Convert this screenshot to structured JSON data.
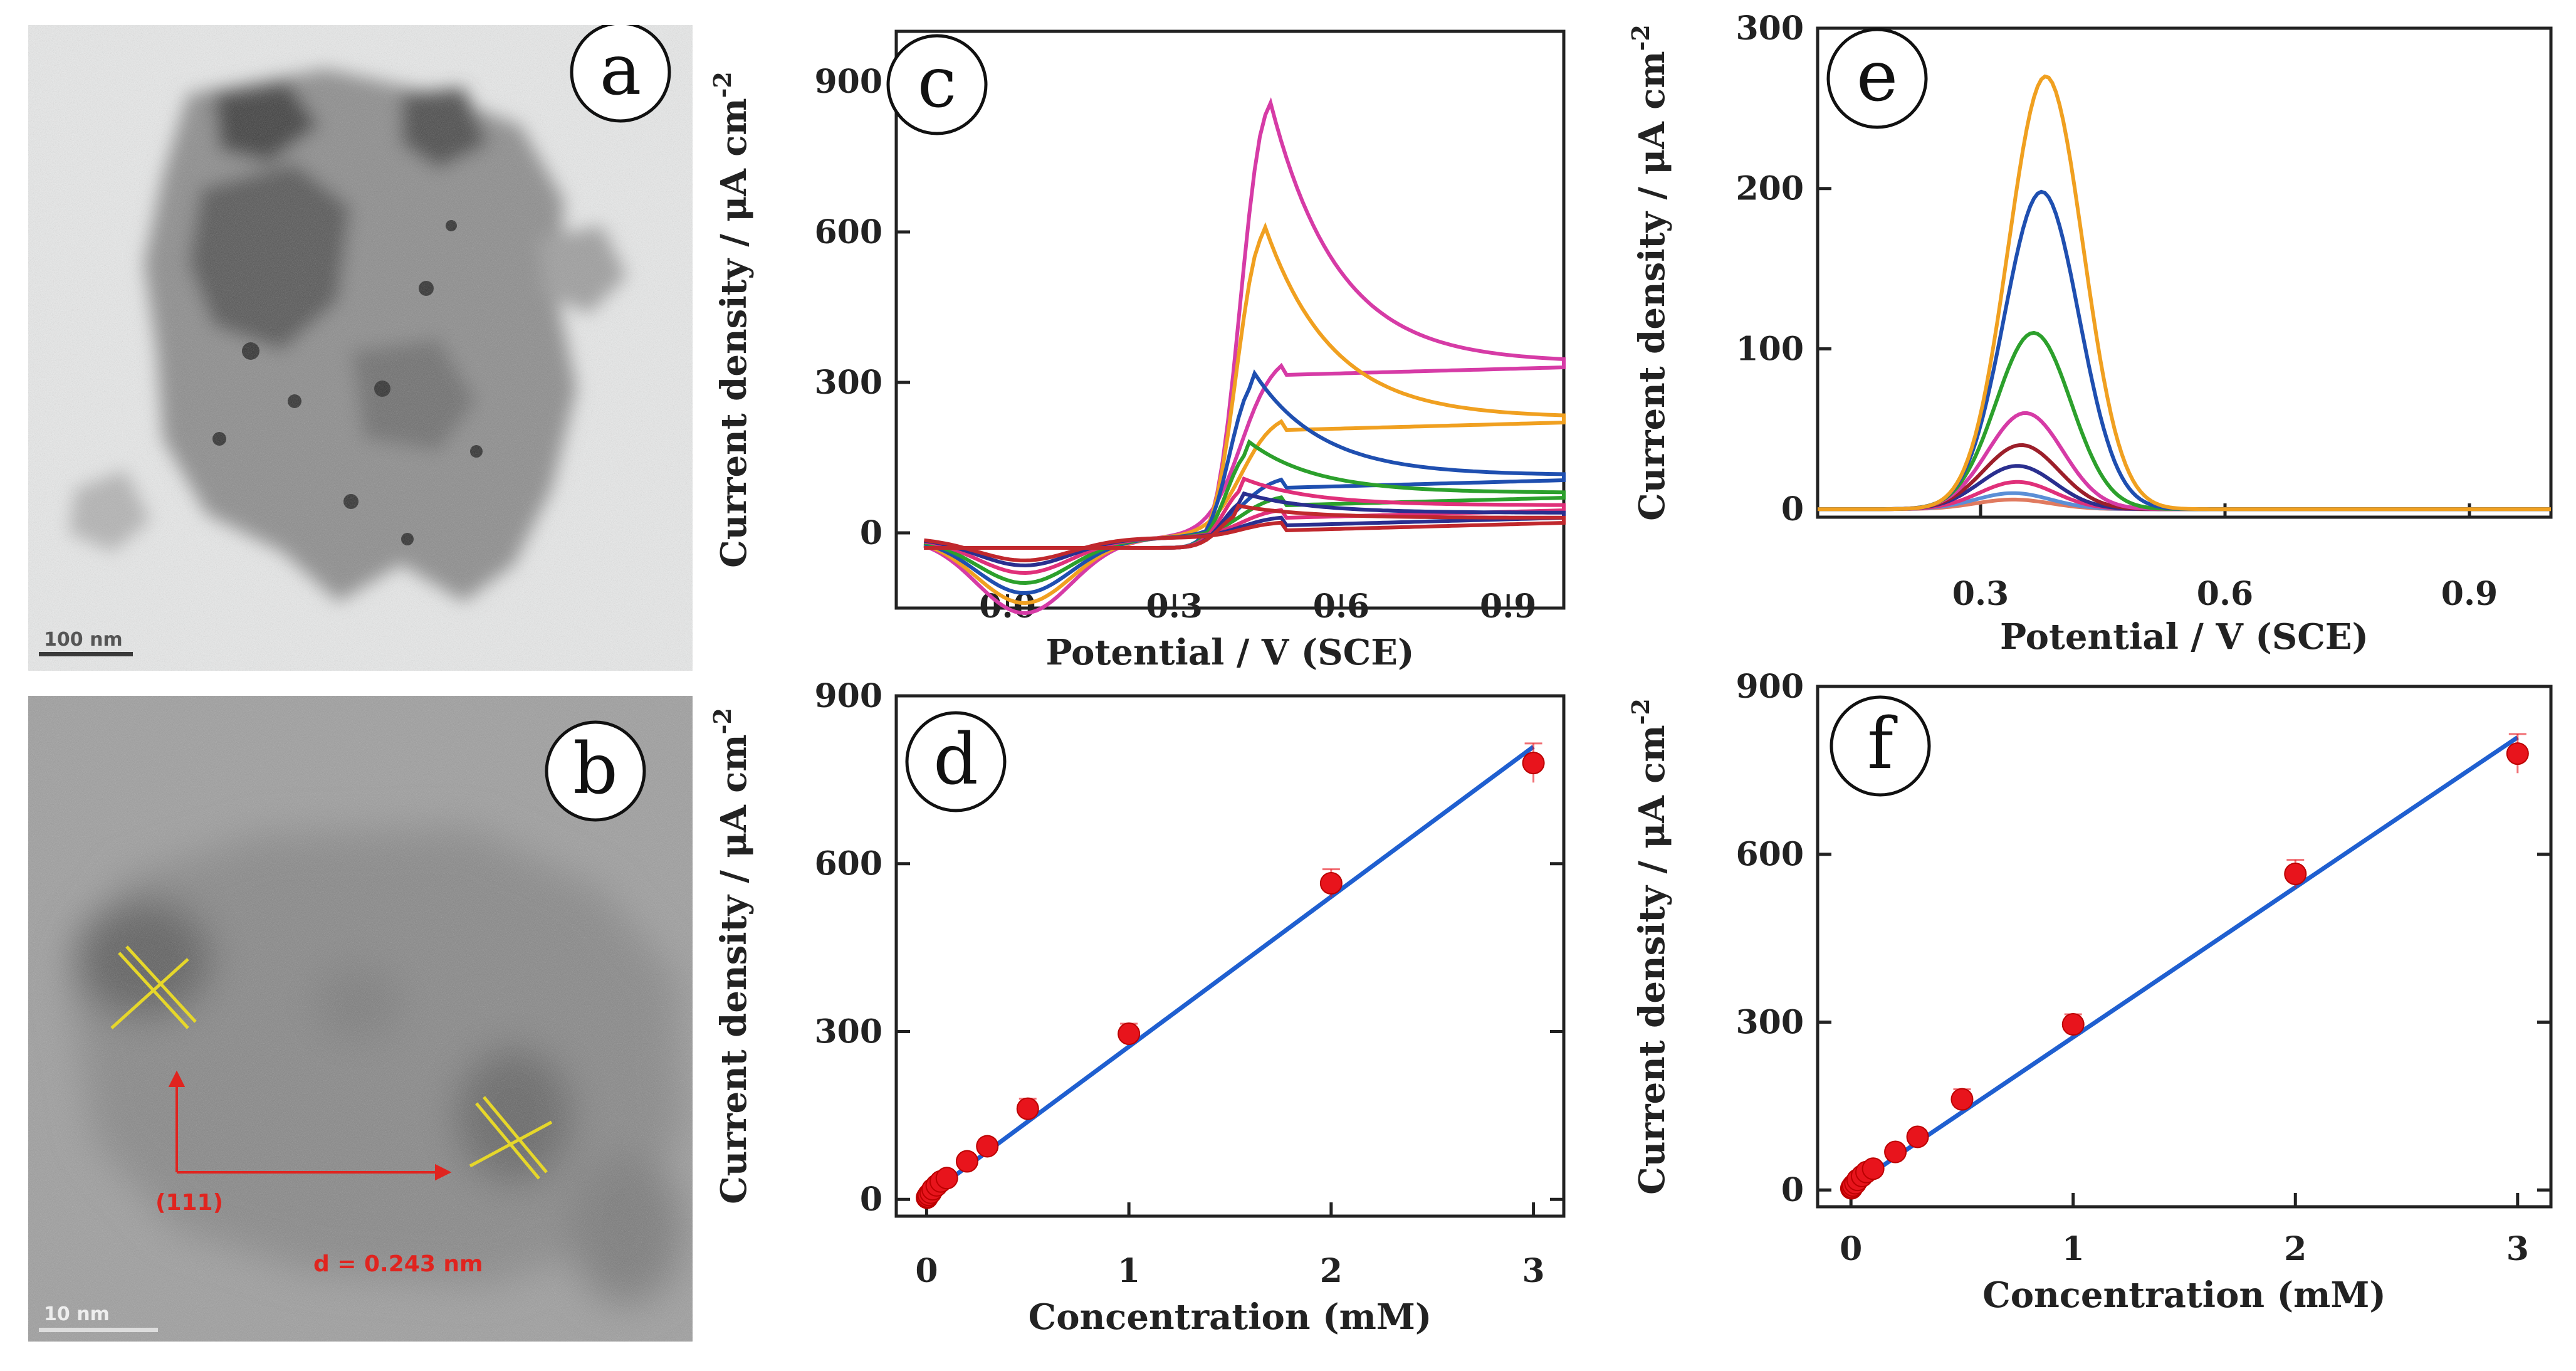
{
  "panels": {
    "a": {
      "letter": "a",
      "scale_bar": "100 nm"
    },
    "b": {
      "letter": "b",
      "scale_bar": "10 nm",
      "plane": "(111)",
      "d_spacing": "d = 0.243 nm"
    }
  },
  "chart_data": [
    {
      "id": "c",
      "letter": "c",
      "type": "line",
      "title": "",
      "xlabel": "Potential / V (SCE)",
      "ylabel": "Current density / μA cm",
      "ylabel_sup": "-2",
      "xlim": [
        -0.2,
        1.0
      ],
      "ylim": [
        -150,
        1000
      ],
      "xticks": [
        "0.0",
        "0.3",
        "0.6",
        "0.9"
      ],
      "xtick_values": [
        0.0,
        0.3,
        0.6,
        0.9
      ],
      "yticks": [
        "0",
        "300",
        "600",
        "900"
      ],
      "ytick_values": [
        0,
        300,
        600,
        900
      ],
      "series": [
        {
          "name": "magenta",
          "color": "#d63ba6",
          "peak_x": 0.47,
          "peak_y": 870,
          "end_y": 340,
          "min_y": -150
        },
        {
          "name": "orange",
          "color": "#f0a020",
          "peak_x": 0.46,
          "peak_y": 620,
          "end_y": 230,
          "min_y": -130
        },
        {
          "name": "blue",
          "color": "#1f4fb0",
          "peak_x": 0.44,
          "peak_y": 325,
          "end_y": 115,
          "min_y": -110
        },
        {
          "name": "green",
          "color": "#2ca02c",
          "peak_x": 0.43,
          "peak_y": 185,
          "end_y": 80,
          "min_y": -90
        },
        {
          "name": "pink",
          "color": "#e0307a",
          "peak_x": 0.42,
          "peak_y": 110,
          "end_y": 55,
          "min_y": -70
        },
        {
          "name": "navy",
          "color": "#2a2f8f",
          "peak_x": 0.42,
          "peak_y": 80,
          "end_y": 40,
          "min_y": -55
        },
        {
          "name": "red",
          "color": "#c0282d",
          "peak_x": 0.41,
          "peak_y": 55,
          "end_y": 30,
          "min_y": -45
        }
      ]
    },
    {
      "id": "e",
      "letter": "e",
      "type": "line",
      "title": "",
      "xlabel": "Potential / V (SCE)",
      "ylabel": "Current density / μA cm",
      "ylabel_sup": "-2",
      "xlim": [
        0.1,
        1.0
      ],
      "ylim": [
        -5,
        300
      ],
      "xticks": [
        "0.3",
        "0.6",
        "0.9"
      ],
      "xtick_values": [
        0.3,
        0.6,
        0.9
      ],
      "yticks": [
        "0",
        "100",
        "200",
        "300"
      ],
      "ytick_values": [
        0,
        100,
        200,
        300
      ],
      "series": [
        {
          "name": "orange",
          "color": "#f0a020",
          "peak_x": 0.38,
          "peak_y": 270
        },
        {
          "name": "blue",
          "color": "#1f4fb0",
          "peak_x": 0.375,
          "peak_y": 198
        },
        {
          "name": "green",
          "color": "#2ca02c",
          "peak_x": 0.365,
          "peak_y": 110
        },
        {
          "name": "magenta",
          "color": "#d63ba6",
          "peak_x": 0.355,
          "peak_y": 60
        },
        {
          "name": "darkred",
          "color": "#9c1f2a",
          "peak_x": 0.35,
          "peak_y": 40
        },
        {
          "name": "navy",
          "color": "#2a2f8f",
          "peak_x": 0.345,
          "peak_y": 27
        },
        {
          "name": "pink",
          "color": "#e0307a",
          "peak_x": 0.345,
          "peak_y": 17
        },
        {
          "name": "lightblue",
          "color": "#5b8fd6",
          "peak_x": 0.34,
          "peak_y": 10
        },
        {
          "name": "salmon",
          "color": "#e07a5f",
          "peak_x": 0.34,
          "peak_y": 6
        }
      ]
    },
    {
      "id": "d",
      "letter": "d",
      "type": "scatter",
      "title": "",
      "xlabel": "Concentration (mM)",
      "ylabel": "Current density / μA cm",
      "ylabel_sup": "-2",
      "xlim": [
        -0.15,
        3.15
      ],
      "ylim": [
        -30,
        900
      ],
      "xticks": [
        "0",
        "1",
        "2",
        "3"
      ],
      "xtick_values": [
        0,
        1,
        2,
        3
      ],
      "yticks": [
        "0",
        "300",
        "600",
        "900"
      ],
      "ytick_values": [
        0,
        300,
        600,
        900
      ],
      "x": [
        0.002,
        0.005,
        0.01,
        0.02,
        0.03,
        0.05,
        0.07,
        0.1,
        0.2,
        0.3,
        0.5,
        1,
        2,
        3
      ],
      "y": [
        3,
        5,
        8,
        12,
        18,
        25,
        32,
        38,
        68,
        95,
        162,
        296,
        565,
        780
      ],
      "err": [
        3,
        3,
        4,
        4,
        5,
        6,
        7,
        8,
        10,
        12,
        18,
        18,
        25,
        35
      ],
      "fit": {
        "slope": 268,
        "intercept": 5,
        "x_range": [
          0,
          3
        ]
      },
      "marker_color": "#e8141c",
      "fit_color": "#1f5fd0"
    },
    {
      "id": "f",
      "letter": "f",
      "type": "scatter",
      "title": "",
      "xlabel": "Concentration (mM)",
      "ylabel": "Current density / μA cm",
      "ylabel_sup": "-2",
      "xlim": [
        -0.15,
        3.15
      ],
      "ylim": [
        -30,
        900
      ],
      "xticks": [
        "0",
        "1",
        "2",
        "3"
      ],
      "xtick_values": [
        0,
        1,
        2,
        3
      ],
      "yticks": [
        "0",
        "300",
        "600",
        "900"
      ],
      "ytick_values": [
        0,
        300,
        600,
        900
      ],
      "x": [
        0.002,
        0.005,
        0.01,
        0.02,
        0.03,
        0.05,
        0.07,
        0.1,
        0.2,
        0.3,
        0.5,
        1,
        2,
        3
      ],
      "y": [
        3,
        5,
        8,
        12,
        18,
        25,
        32,
        38,
        68,
        95,
        162,
        296,
        565,
        780
      ],
      "err": [
        3,
        3,
        4,
        4,
        5,
        6,
        7,
        8,
        10,
        12,
        18,
        18,
        25,
        35
      ],
      "fit": {
        "slope": 268,
        "intercept": 5,
        "x_range": [
          0,
          3
        ]
      },
      "marker_color": "#e8141c",
      "fit_color": "#1f5fd0"
    }
  ]
}
